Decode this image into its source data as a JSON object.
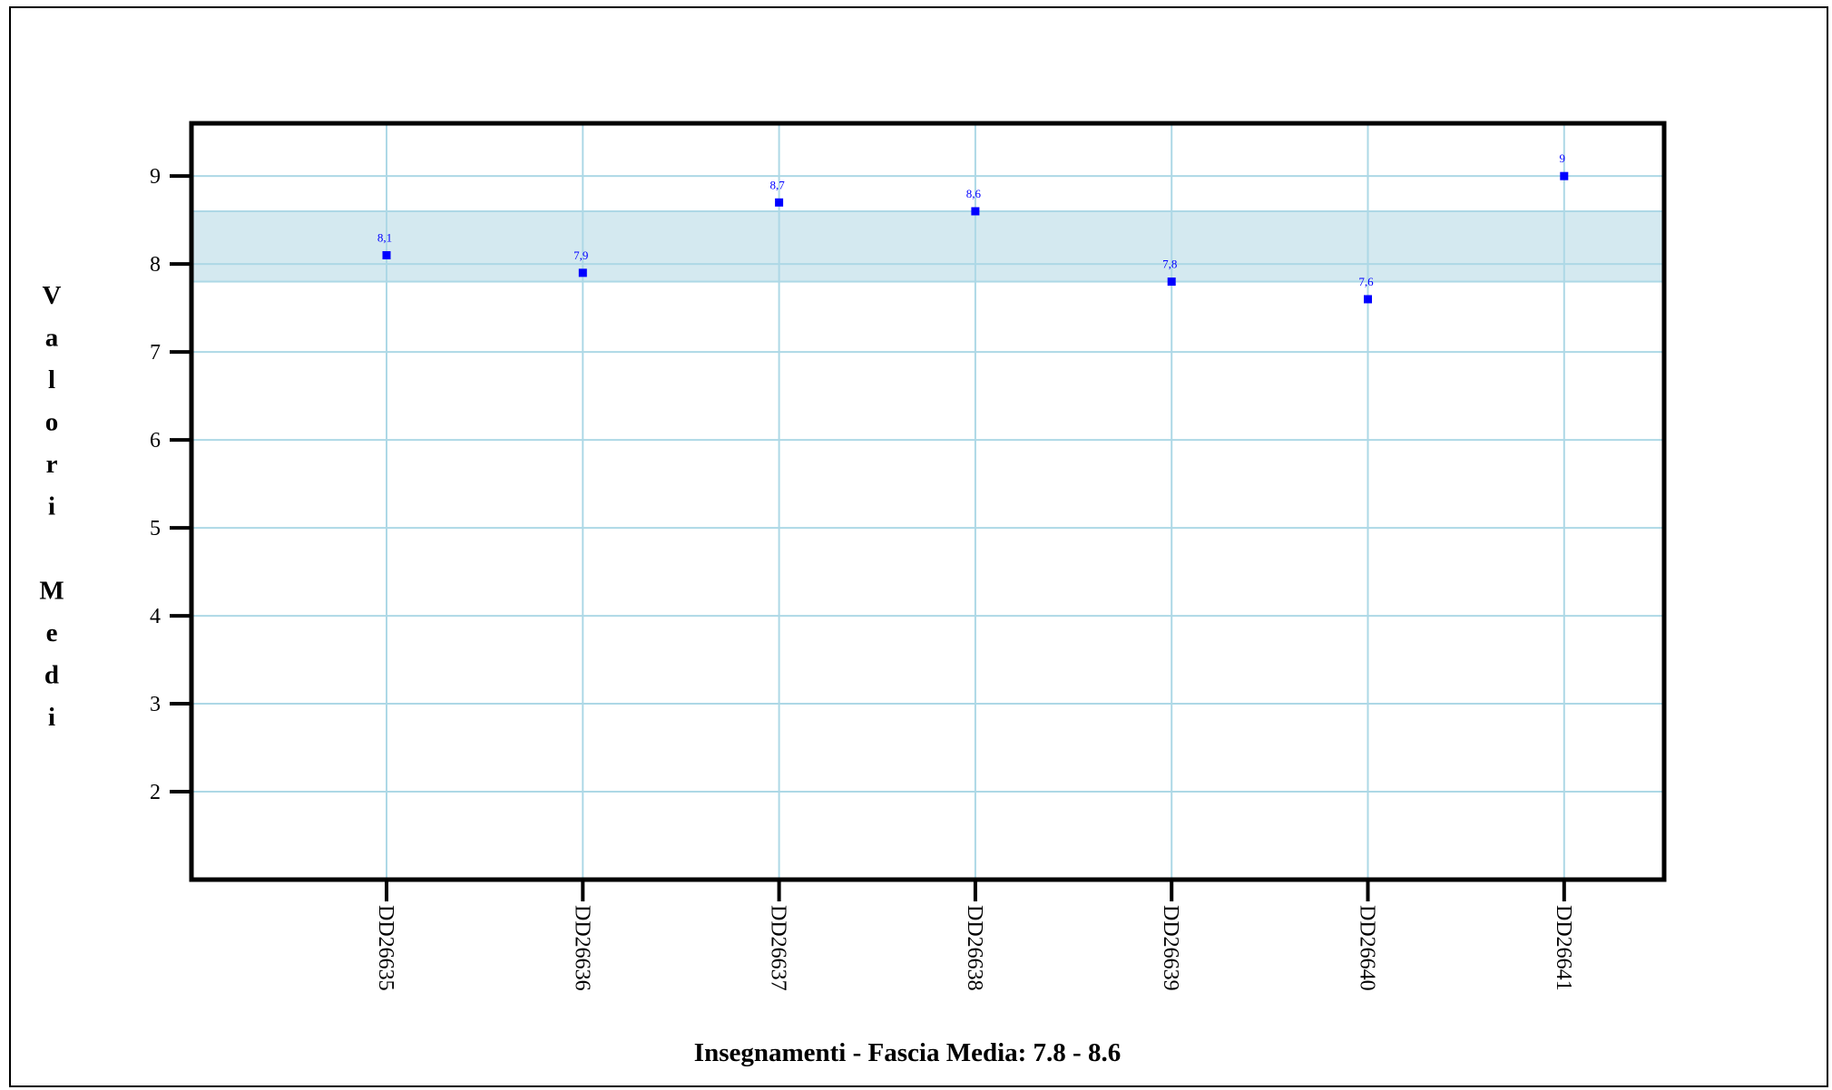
{
  "chart_data": {
    "type": "scatter",
    "title": "",
    "xlabel": "Insegnamenti - Fascia Media: 7.8 - 8.6",
    "ylabel": "Valori Medi",
    "categories": [
      "DD26635",
      "DD26636",
      "DD26637",
      "DD26638",
      "DD26639",
      "DD26640",
      "DD26641"
    ],
    "values": [
      8.1,
      7.9,
      8.7,
      8.6,
      7.8,
      7.6,
      9
    ],
    "data_labels": [
      "8,1",
      "7,9",
      "8,7",
      "8,6",
      "7,8",
      "7,6",
      "9"
    ],
    "y_ticks": [
      2,
      3,
      4,
      5,
      6,
      7,
      8,
      9
    ],
    "ylim": [
      1,
      9.6
    ],
    "band": [
      7.8,
      8.6
    ],
    "grid": true,
    "colors": {
      "point": "#0000ff",
      "grid": "#add8e6",
      "band": "#d4e9f0",
      "axis": "#000000"
    }
  }
}
